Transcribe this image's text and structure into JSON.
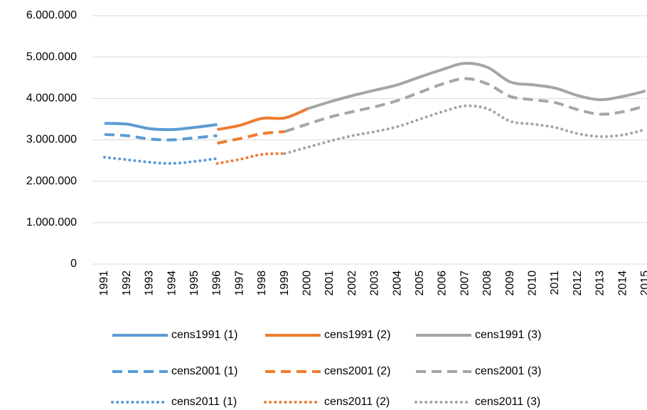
{
  "chart_data": {
    "type": "line",
    "categories": [
      "1991",
      "1992",
      "1993",
      "1994",
      "1995",
      "1996",
      "1997",
      "1998",
      "1999",
      "2000",
      "2001",
      "2002",
      "2003",
      "2004",
      "2005",
      "2006",
      "2007",
      "2008",
      "2009",
      "2010",
      "2011",
      "2012",
      "2013",
      "2014",
      "2015"
    ],
    "ylim": [
      0,
      6000000
    ],
    "yticks": [
      0,
      {
        "value": 1000000,
        "label": "1.000.000"
      },
      {
        "value": 2000000,
        "label": "2.000.000"
      },
      {
        "value": 3000000,
        "label": "3.000.000"
      },
      {
        "value": 4000000,
        "label": "4.000.000"
      },
      {
        "value": 5000000,
        "label": "5.000.000"
      },
      {
        "value": 6000000,
        "label": "6.000.000"
      }
    ],
    "grid": true,
    "legend": "bottom",
    "series": [
      {
        "name": "cens1991 (1)",
        "color": "#5b9bd5",
        "dash": "solid",
        "values": [
          3400000,
          3380000,
          3270000,
          3250000,
          3300000,
          3370000,
          null,
          null,
          null,
          null,
          null,
          null,
          null,
          null,
          null,
          null,
          null,
          null,
          null,
          null,
          null,
          null,
          null,
          null,
          null
        ]
      },
      {
        "name": "cens1991 (2)",
        "color": "#ed7d31",
        "dash": "solid",
        "values": [
          null,
          null,
          null,
          null,
          null,
          3250000,
          3350000,
          3520000,
          3530000,
          3750000,
          null,
          null,
          null,
          null,
          null,
          null,
          null,
          null,
          null,
          null,
          null,
          null,
          null,
          null,
          null
        ]
      },
      {
        "name": "cens1991 (3)",
        "color": "#a5a5a5",
        "dash": "solid",
        "values": [
          null,
          null,
          null,
          null,
          null,
          null,
          null,
          null,
          null,
          3750000,
          3920000,
          4070000,
          4200000,
          4330000,
          4520000,
          4700000,
          4850000,
          4750000,
          4400000,
          4330000,
          4250000,
          4070000,
          3970000,
          4050000,
          4180000
        ]
      },
      {
        "name": "cens2001 (1)",
        "color": "#5b9bd5",
        "dash": "dashed",
        "values": [
          3130000,
          3100000,
          3020000,
          3000000,
          3050000,
          3100000,
          null,
          null,
          null,
          null,
          null,
          null,
          null,
          null,
          null,
          null,
          null,
          null,
          null,
          null,
          null,
          null,
          null,
          null,
          null
        ]
      },
      {
        "name": "cens2001 (2)",
        "color": "#ed7d31",
        "dash": "dashed",
        "values": [
          null,
          null,
          null,
          null,
          null,
          2920000,
          3030000,
          3150000,
          3200000,
          null,
          null,
          null,
          null,
          null,
          null,
          null,
          null,
          null,
          null,
          null,
          null,
          null,
          null,
          null,
          null
        ]
      },
      {
        "name": "cens2001 (3)",
        "color": "#a5a5a5",
        "dash": "dashed",
        "values": [
          null,
          null,
          null,
          null,
          null,
          null,
          null,
          null,
          3200000,
          3380000,
          3550000,
          3680000,
          3800000,
          3950000,
          4150000,
          4350000,
          4480000,
          4350000,
          4050000,
          3970000,
          3900000,
          3730000,
          3620000,
          3680000,
          3820000
        ]
      },
      {
        "name": "cens2011 (1)",
        "color": "#5b9bd5",
        "dash": "dotted",
        "values": [
          2580000,
          2520000,
          2460000,
          2430000,
          2480000,
          2550000,
          null,
          null,
          null,
          null,
          null,
          null,
          null,
          null,
          null,
          null,
          null,
          null,
          null,
          null,
          null,
          null,
          null,
          null,
          null
        ]
      },
      {
        "name": "cens2011 (2)",
        "color": "#ed7d31",
        "dash": "dotted",
        "values": [
          null,
          null,
          null,
          null,
          null,
          2430000,
          2530000,
          2650000,
          2670000,
          null,
          null,
          null,
          null,
          null,
          null,
          null,
          null,
          null,
          null,
          null,
          null,
          null,
          null,
          null,
          null
        ]
      },
      {
        "name": "cens2011 (3)",
        "color": "#a5a5a5",
        "dash": "dotted",
        "values": [
          null,
          null,
          null,
          null,
          null,
          null,
          null,
          null,
          2670000,
          2820000,
          2970000,
          3100000,
          3200000,
          3320000,
          3500000,
          3680000,
          3820000,
          3750000,
          3450000,
          3380000,
          3300000,
          3150000,
          3080000,
          3120000,
          3250000
        ]
      }
    ]
  }
}
